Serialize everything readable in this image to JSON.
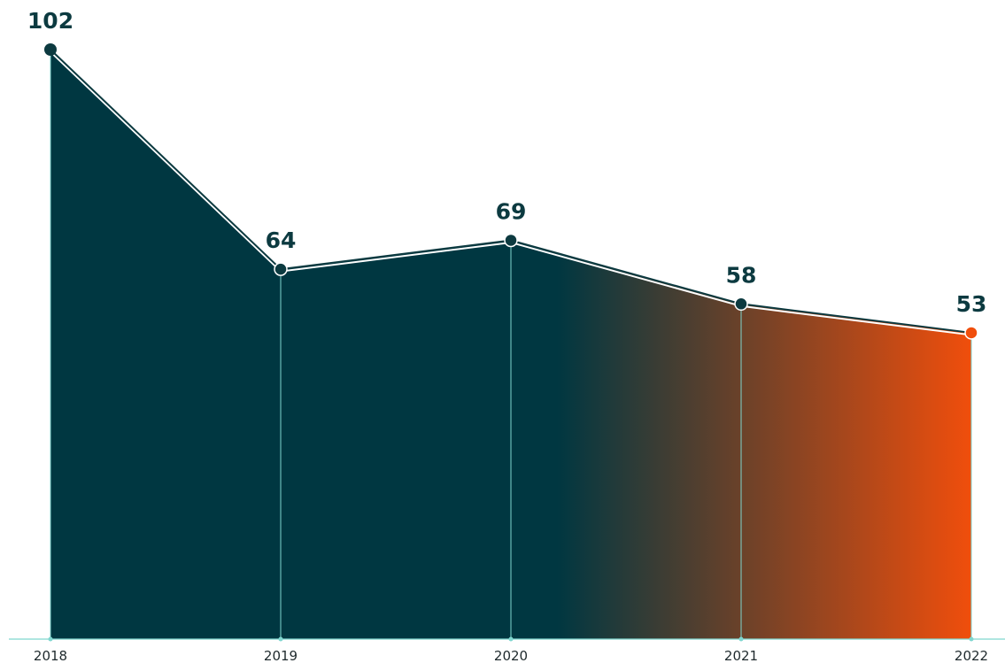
{
  "chart_data": {
    "type": "area",
    "categories": [
      "2018",
      "2019",
      "2020",
      "2021",
      "2022"
    ],
    "values": [
      102,
      64,
      69,
      58,
      53
    ],
    "data_labels": [
      "102",
      "64",
      "69",
      "58",
      "53"
    ],
    "title": "",
    "xlabel": "",
    "ylabel": "",
    "ylim": [
      0,
      102
    ],
    "grid": false,
    "legend": "none",
    "colors": {
      "fill_start": "#003741",
      "fill_end": "#f04e0c",
      "line": "#0c3a40",
      "guide": "#7fd6cf",
      "marker_last": "#f04e0c",
      "label": "#0c3a40"
    }
  }
}
